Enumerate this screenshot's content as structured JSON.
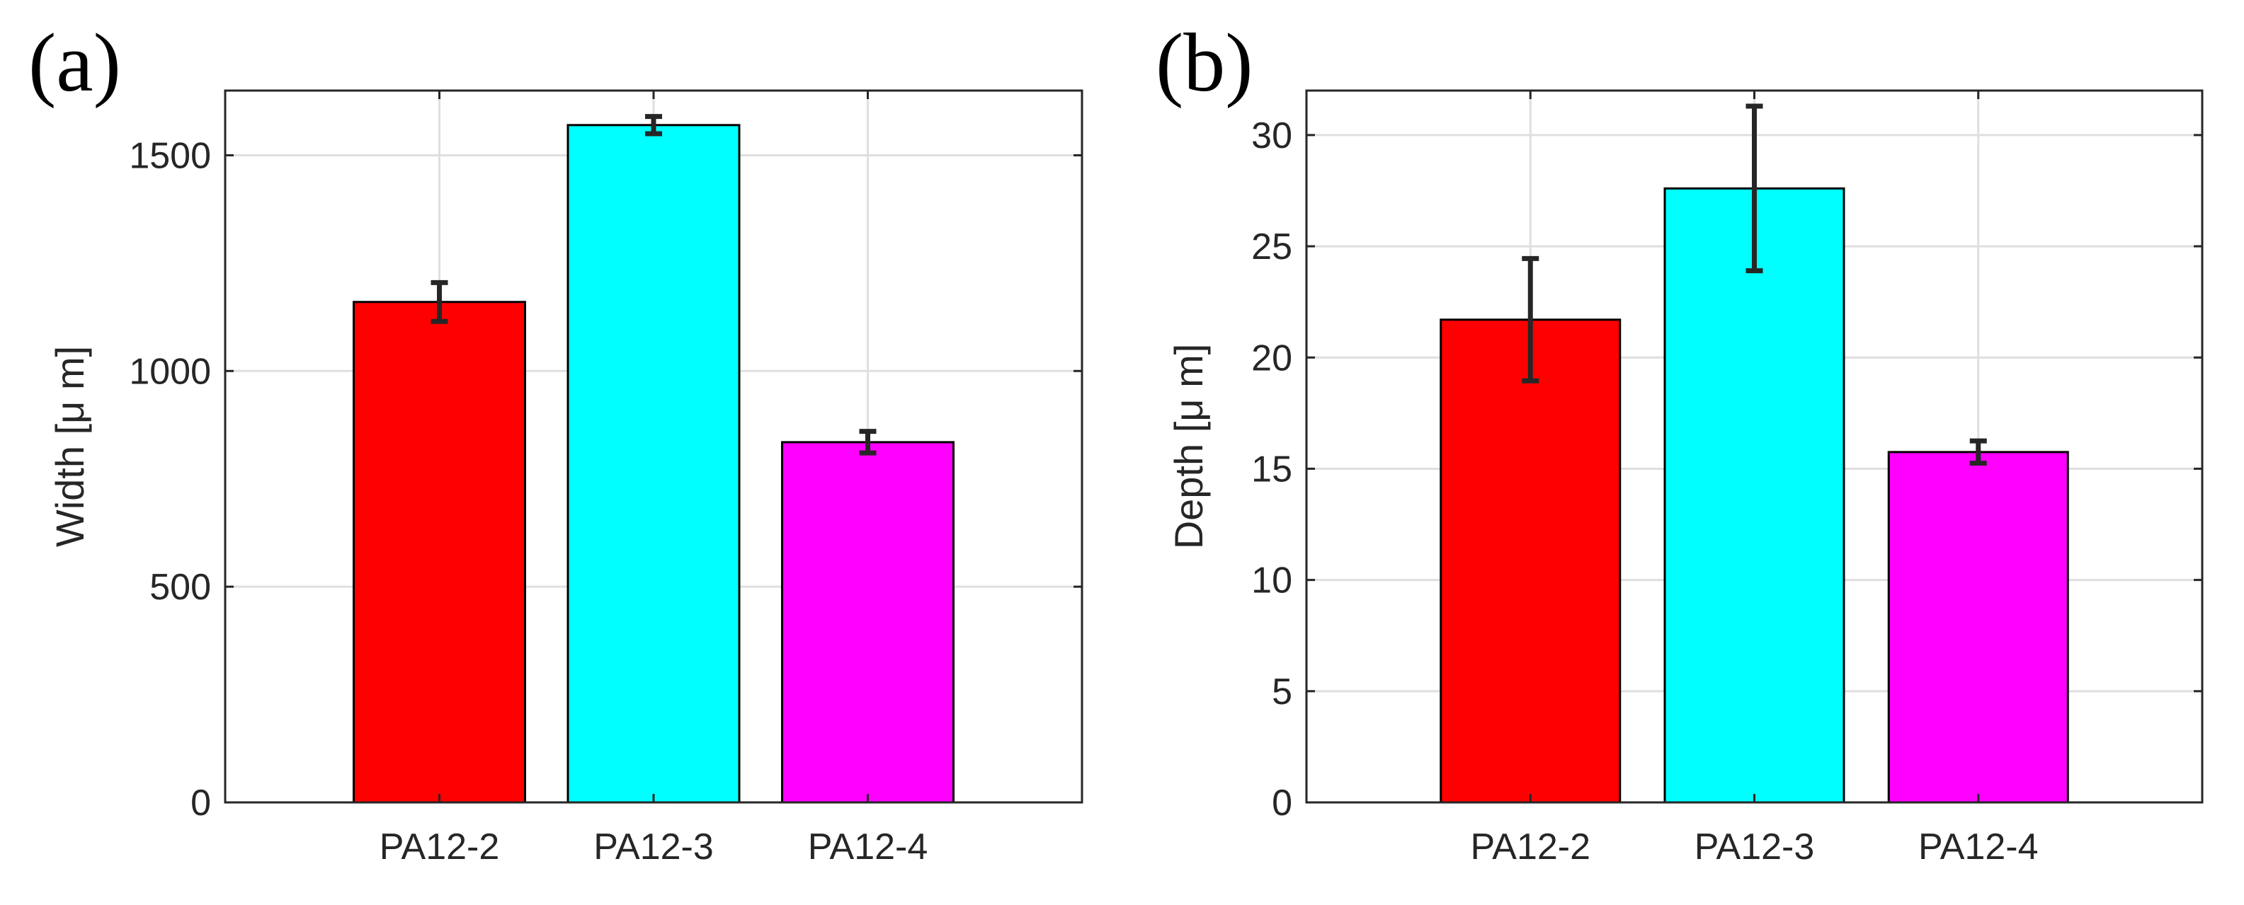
{
  "chart_data": [
    {
      "type": "bar",
      "panel_label": "(a)",
      "title": "",
      "xlabel": "",
      "ylabel": "Width [μ m]",
      "categories": [
        "PA12-2",
        "PA12-3",
        "PA12-4"
      ],
      "values": [
        1160,
        1570,
        835
      ],
      "errors": [
        45,
        20,
        25
      ],
      "colors": [
        "#ff0000",
        "#00ffff",
        "#ff00ff"
      ],
      "ylim": [
        0,
        1650
      ],
      "yticks": [
        0,
        500,
        1000,
        1500
      ],
      "ytick_labels": [
        "0",
        "500",
        "1000",
        "1500"
      ],
      "grid": true
    },
    {
      "type": "bar",
      "panel_label": "(b)",
      "title": "",
      "xlabel": "",
      "ylabel": "Depth [μ m]",
      "categories": [
        "PA12-2",
        "PA12-3",
        "PA12-4"
      ],
      "values": [
        21.7,
        27.6,
        15.75
      ],
      "errors": [
        2.75,
        3.7,
        0.5
      ],
      "colors": [
        "#ff0000",
        "#00ffff",
        "#ff00ff"
      ],
      "ylim": [
        0,
        32
      ],
      "yticks": [
        0,
        5,
        10,
        15,
        20,
        25,
        30
      ],
      "ytick_labels": [
        "0",
        "5",
        "10",
        "15",
        "20",
        "25",
        "30"
      ],
      "grid": true
    }
  ]
}
